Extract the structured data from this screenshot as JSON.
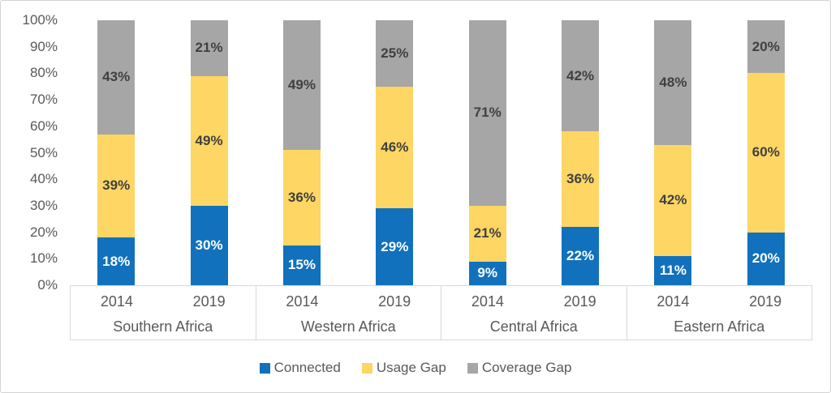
{
  "chart_data": {
    "type": "bar",
    "variant": "stacked-100pct",
    "title": "",
    "xlabel": "",
    "ylabel": "",
    "ylim": [
      0,
      100
    ],
    "grid": false,
    "legend_position": "bottom",
    "y_ticks": [
      "100%",
      "90%",
      "80%",
      "70%",
      "60%",
      "50%",
      "40%",
      "30%",
      "20%",
      "10%",
      "0%"
    ],
    "groups": [
      {
        "label": "Southern Africa",
        "years": [
          "2014",
          "2019"
        ]
      },
      {
        "label": "Western Africa",
        "years": [
          "2014",
          "2019"
        ]
      },
      {
        "label": "Central Africa",
        "years": [
          "2014",
          "2019"
        ]
      },
      {
        "label": "Eastern Africa",
        "years": [
          "2014",
          "2019"
        ]
      }
    ],
    "categories": [
      "Southern Africa 2014",
      "Southern Africa 2019",
      "Western Africa 2014",
      "Western Africa 2019",
      "Central Africa 2014",
      "Central Africa 2019",
      "Eastern Africa 2014",
      "Eastern Africa 2019"
    ],
    "series": [
      {
        "name": "Connected",
        "color": "#1171bc",
        "label_color": "#ffffff",
        "values": [
          18,
          30,
          15,
          29,
          9,
          22,
          11,
          20
        ],
        "labels": [
          "18%",
          "30%",
          "15%",
          "29%",
          "9%",
          "22%",
          "11%",
          "20%"
        ]
      },
      {
        "name": "Usage Gap",
        "color": "#fdd664",
        "label_color": "#404040",
        "values": [
          39,
          49,
          36,
          46,
          21,
          36,
          42,
          60
        ],
        "labels": [
          "39%",
          "49%",
          "36%",
          "46%",
          "21%",
          "36%",
          "42%",
          "60%"
        ]
      },
      {
        "name": "Coverage Gap",
        "color": "#a6a6a6",
        "label_color": "#404040",
        "values": [
          43,
          21,
          49,
          25,
          71,
          42,
          48,
          20
        ],
        "labels": [
          "43%",
          "21%",
          "49%",
          "25%",
          "71%",
          "42%",
          "48%",
          "20%"
        ]
      }
    ]
  },
  "legend": {
    "items": [
      {
        "label": "Connected",
        "color": "#1171bc"
      },
      {
        "label": "Usage Gap",
        "color": "#fdd664"
      },
      {
        "label": "Coverage Gap",
        "color": "#a6a6a6"
      }
    ]
  }
}
